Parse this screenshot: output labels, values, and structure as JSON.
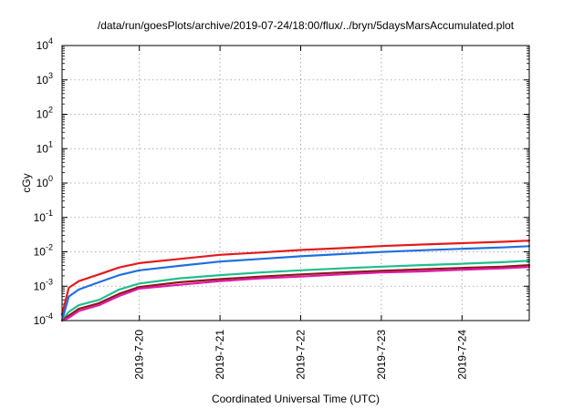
{
  "chart_data": {
    "type": "line",
    "title": "/data/run/goesPlots/archive/2019-07-24/18:00/flux/../bryn/5daysMarsAccumulated.plot",
    "xlabel": "Coordinated Universal Time (UTC)",
    "ylabel": "cGy",
    "yscale": "log",
    "ylim": [
      0.0001,
      10000
    ],
    "xlim": [
      "2019-07-19T01:00",
      "2019-07-24T20:00"
    ],
    "x_ticks": [
      "2019-7-20",
      "2019-7-21",
      "2019-7-22",
      "2019-7-23",
      "2019-7-24"
    ],
    "y_ticks": [
      {
        "base": "10",
        "exp": "-4",
        "value": 0.0001
      },
      {
        "base": "10",
        "exp": "-3",
        "value": 0.001
      },
      {
        "base": "10",
        "exp": "-2",
        "value": 0.01
      },
      {
        "base": "10",
        "exp": "-1",
        "value": 0.1
      },
      {
        "base": "10",
        "exp": "0",
        "value": 1
      },
      {
        "base": "10",
        "exp": "1",
        "value": 10
      },
      {
        "base": "10",
        "exp": "2",
        "value": 100
      },
      {
        "base": "10",
        "exp": "3",
        "value": 1000
      },
      {
        "base": "10",
        "exp": "4",
        "value": 10000
      }
    ],
    "grid": true,
    "legend": "none",
    "series": [
      {
        "color": "#e41a1c",
        "x": [
          "2019-07-19T01:00",
          "2019-07-19T03:00",
          "2019-07-19T06:00",
          "2019-07-19T12:00",
          "2019-07-19T18:00",
          "2019-07-20T00:00",
          "2019-07-20T12:00",
          "2019-07-21T00:00",
          "2019-07-21T12:00",
          "2019-07-22T00:00",
          "2019-07-22T12:00",
          "2019-07-23T00:00",
          "2019-07-23T12:00",
          "2019-07-24T00:00",
          "2019-07-24T12:00",
          "2019-07-24T20:00"
        ],
        "values": [
          0.00015,
          0.0009,
          0.0014,
          0.0022,
          0.0035,
          0.0047,
          0.0062,
          0.0082,
          0.0095,
          0.0113,
          0.0128,
          0.0147,
          0.0163,
          0.0179,
          0.0196,
          0.0212
        ]
      },
      {
        "color": "#1f6fe0",
        "x": [
          "2019-07-19T01:00",
          "2019-07-19T03:00",
          "2019-07-19T06:00",
          "2019-07-19T12:00",
          "2019-07-19T18:00",
          "2019-07-20T00:00",
          "2019-07-20T12:00",
          "2019-07-21T00:00",
          "2019-07-21T12:00",
          "2019-07-22T00:00",
          "2019-07-22T12:00",
          "2019-07-23T00:00",
          "2019-07-23T12:00",
          "2019-07-24T00:00",
          "2019-07-24T12:00",
          "2019-07-24T20:00"
        ],
        "values": [
          0.0001,
          0.0005,
          0.0008,
          0.0013,
          0.0021,
          0.0029,
          0.0039,
          0.0052,
          0.0062,
          0.0074,
          0.0086,
          0.0099,
          0.0111,
          0.0122,
          0.0134,
          0.0146
        ]
      },
      {
        "color": "#1fbf8f",
        "x": [
          "2019-07-19T01:00",
          "2019-07-19T03:00",
          "2019-07-19T06:00",
          "2019-07-19T12:00",
          "2019-07-19T18:00",
          "2019-07-20T00:00",
          "2019-07-20T12:00",
          "2019-07-21T00:00",
          "2019-07-21T12:00",
          "2019-07-22T00:00",
          "2019-07-22T12:00",
          "2019-07-23T00:00",
          "2019-07-23T12:00",
          "2019-07-24T00:00",
          "2019-07-24T12:00",
          "2019-07-24T20:00"
        ],
        "values": [
          0.0001,
          0.00018,
          0.00028,
          0.0004,
          0.0008,
          0.0012,
          0.0017,
          0.0021,
          0.0025,
          0.0029,
          0.0033,
          0.0037,
          0.0041,
          0.0045,
          0.005,
          0.0055
        ]
      },
      {
        "color": "#8b1a1a",
        "x": [
          "2019-07-19T01:00",
          "2019-07-19T03:00",
          "2019-07-19T06:00",
          "2019-07-19T12:00",
          "2019-07-19T18:00",
          "2019-07-20T00:00",
          "2019-07-20T12:00",
          "2019-07-21T00:00",
          "2019-07-21T12:00",
          "2019-07-22T00:00",
          "2019-07-22T12:00",
          "2019-07-23T00:00",
          "2019-07-23T12:00",
          "2019-07-24T00:00",
          "2019-07-24T12:00",
          "2019-07-24T20:00"
        ],
        "values": [
          0.0001,
          0.00014,
          0.00022,
          0.00032,
          0.0006,
          0.00095,
          0.0013,
          0.0016,
          0.0019,
          0.0022,
          0.0025,
          0.0028,
          0.0031,
          0.0034,
          0.0037,
          0.0041
        ]
      },
      {
        "color": "#e01aa8",
        "x": [
          "2019-07-19T01:00",
          "2019-07-19T03:00",
          "2019-07-19T06:00",
          "2019-07-19T12:00",
          "2019-07-19T18:00",
          "2019-07-20T00:00",
          "2019-07-20T12:00",
          "2019-07-21T00:00",
          "2019-07-21T12:00",
          "2019-07-22T00:00",
          "2019-07-22T12:00",
          "2019-07-23T00:00",
          "2019-07-23T12:00",
          "2019-07-24T00:00",
          "2019-07-24T12:00",
          "2019-07-24T20:00"
        ],
        "values": [
          0.0001,
          0.00012,
          0.00019,
          0.00028,
          0.00052,
          0.00085,
          0.0011,
          0.0014,
          0.0017,
          0.0019,
          0.0022,
          0.0025,
          0.0027,
          0.003,
          0.0033,
          0.0036
        ]
      }
    ]
  }
}
